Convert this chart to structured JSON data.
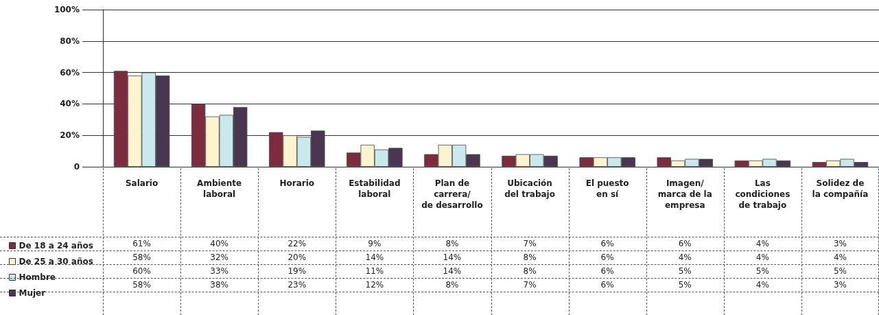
{
  "chart_data": {
    "type": "bar",
    "categories": [
      "Salario",
      "Ambiente\nlaboral",
      "Horario",
      "Estabilidad\nlaboral",
      "Plan de\ncarrera/\nde desarrollo",
      "Ubicación\ndel trabajo",
      "El puesto\nen sí",
      "Imagen/\nmarca de la\nempresa",
      "Las\ncondiciones\nde trabajo",
      "Solidez de\nla compañía"
    ],
    "series": [
      {
        "name": "De 18 a 24 años",
        "color": "#7d2b3f",
        "values": [
          61,
          40,
          22,
          9,
          8,
          7,
          6,
          6,
          4,
          3
        ],
        "value_labels": [
          "61%",
          "40%",
          "22%",
          "9%",
          "8%",
          "7%",
          "6%",
          "6%",
          "4%",
          "3%"
        ]
      },
      {
        "name": "De 25 a 30 años",
        "color": "#fbf4cf",
        "values": [
          58,
          32,
          20,
          14,
          14,
          8,
          6,
          4,
          4,
          4
        ],
        "value_labels": [
          "58%",
          "32%",
          "20%",
          "14%",
          "14%",
          "8%",
          "6%",
          "4%",
          "4%",
          "4%"
        ]
      },
      {
        "name": "Hombre",
        "color": "#c9e9ef",
        "values": [
          60,
          33,
          19,
          11,
          14,
          8,
          6,
          5,
          5,
          5
        ],
        "value_labels": [
          "60%",
          "33%",
          "19%",
          "11%",
          "14%",
          "8%",
          "6%",
          "5%",
          "5%",
          "5%"
        ]
      },
      {
        "name": "Mujer",
        "color": "#4b3652",
        "values": [
          58,
          38,
          23,
          12,
          8,
          7,
          6,
          5,
          4,
          3
        ],
        "value_labels": [
          "58%",
          "38%",
          "23%",
          "12%",
          "8%",
          "7%",
          "6%",
          "5%",
          "4%",
          "3%"
        ]
      }
    ],
    "ylim": [
      0,
      100
    ],
    "yticks": [
      {
        "value": 0,
        "label": "0"
      },
      {
        "value": 20,
        "label": "20%"
      },
      {
        "value": 40,
        "label": "40%"
      },
      {
        "value": 60,
        "label": "60%"
      },
      {
        "value": 80,
        "label": "80%"
      },
      {
        "value": 100,
        "label": "100%"
      }
    ],
    "grid": "y",
    "legend": "bottom left"
  }
}
